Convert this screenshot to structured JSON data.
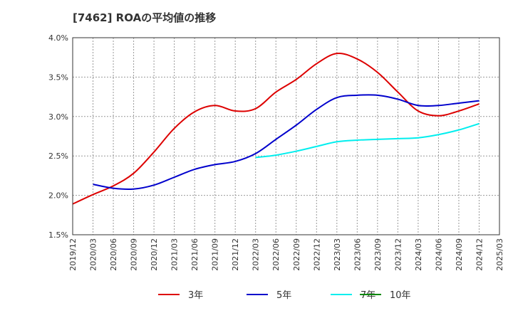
{
  "chart_data": {
    "type": "line",
    "title": "[7462]  ROAの平均値の推移",
    "x_ticks": [
      "2019/12",
      "2020/03",
      "2020/06",
      "2020/09",
      "2020/12",
      "2021/03",
      "2021/06",
      "2021/09",
      "2021/12",
      "2022/03",
      "2022/06",
      "2022/09",
      "2022/12",
      "2023/03",
      "2023/06",
      "2023/09",
      "2023/12",
      "2024/03",
      "2024/06",
      "2024/09",
      "2024/12",
      "2025/03"
    ],
    "y_ticks": [
      "1.5%",
      "2.0%",
      "2.5%",
      "3.0%",
      "3.5%",
      "4.0%"
    ],
    "ylim": [
      1.5,
      4.0
    ],
    "y_unit": "%",
    "grid": true,
    "legend_position": "bottom",
    "series": [
      {
        "name": "3年",
        "color": "#dd0000",
        "x": [
          "2019/12",
          "2020/03",
          "2020/06",
          "2020/09",
          "2020/12",
          "2021/03",
          "2021/06",
          "2021/09",
          "2021/12",
          "2022/03",
          "2022/06",
          "2022/09",
          "2022/12",
          "2023/03",
          "2023/06",
          "2023/09",
          "2023/12",
          "2024/03",
          "2024/06",
          "2024/09",
          "2024/12"
        ],
        "values": [
          1.89,
          2.01,
          2.12,
          2.28,
          2.55,
          2.85,
          3.06,
          3.14,
          3.07,
          3.1,
          3.31,
          3.47,
          3.67,
          3.8,
          3.73,
          3.56,
          3.31,
          3.07,
          3.01,
          3.07,
          3.16
        ]
      },
      {
        "name": "5年",
        "color": "#0000cc",
        "x": [
          "2020/03",
          "2020/06",
          "2020/09",
          "2020/12",
          "2021/03",
          "2021/06",
          "2021/09",
          "2021/12",
          "2022/03",
          "2022/06",
          "2022/09",
          "2022/12",
          "2023/03",
          "2023/06",
          "2023/09",
          "2023/12",
          "2024/03",
          "2024/06",
          "2024/09",
          "2024/12"
        ],
        "values": [
          2.14,
          2.09,
          2.08,
          2.13,
          2.23,
          2.33,
          2.39,
          2.43,
          2.53,
          2.71,
          2.89,
          3.09,
          3.24,
          3.27,
          3.27,
          3.22,
          3.14,
          3.14,
          3.17,
          3.2
        ]
      },
      {
        "name": "7年",
        "color": "#00eeee",
        "x": [
          "2022/03",
          "2022/06",
          "2022/09",
          "2022/12",
          "2023/03",
          "2023/06",
          "2023/09",
          "2023/12",
          "2024/03",
          "2024/06",
          "2024/09",
          "2024/12"
        ],
        "values": [
          2.48,
          2.51,
          2.56,
          2.62,
          2.68,
          2.7,
          2.71,
          2.72,
          2.73,
          2.77,
          2.83,
          2.91
        ]
      },
      {
        "name": "10年",
        "color": "#008800",
        "x": [],
        "values": []
      }
    ]
  }
}
